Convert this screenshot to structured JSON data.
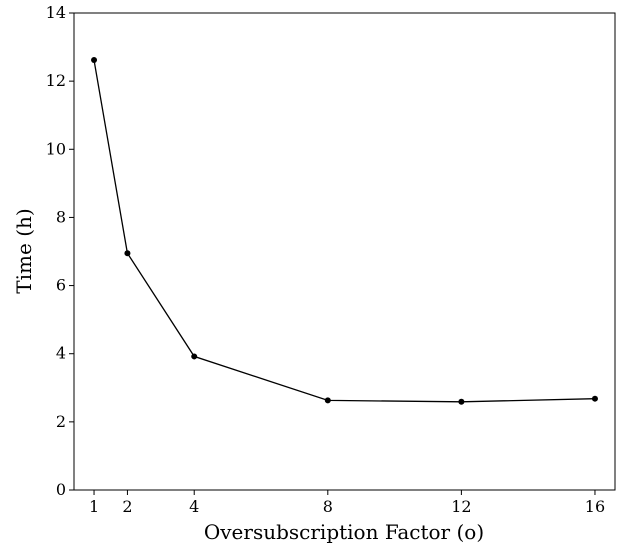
{
  "chart_data": {
    "type": "line",
    "title": "",
    "xlabel": "Oversubscription Factor (o)",
    "ylabel": "Time (h)",
    "x": [
      1,
      2,
      4,
      8,
      12,
      16
    ],
    "series": [
      {
        "values": [
          12.62,
          6.95,
          3.92,
          2.63,
          2.59,
          2.68
        ]
      }
    ],
    "xticks": [
      1,
      2,
      4,
      8,
      12,
      16
    ],
    "yticks": [
      0,
      2,
      4,
      6,
      8,
      10,
      12,
      14
    ],
    "xlim": [
      0.4,
      16.6
    ],
    "ylim": [
      0,
      14
    ],
    "grid": false,
    "line_color": "#000000",
    "marker": "filled-circle"
  }
}
